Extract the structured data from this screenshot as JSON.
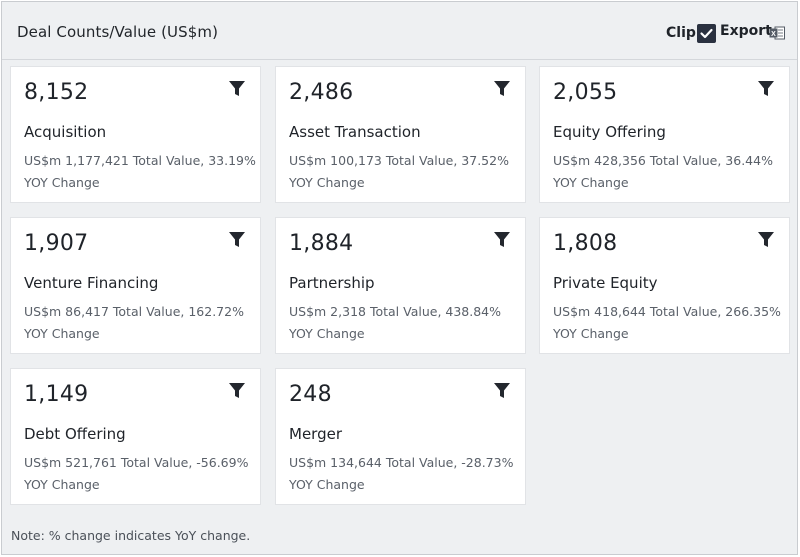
{
  "header": {
    "title": "Deal Counts/Value (US$m)",
    "clip_label": "Clip",
    "export_label": "Export"
  },
  "cards": [
    {
      "count": "8,152",
      "name": "Acquisition",
      "stats": "US$m 1,177,421 Total Value, 33.19% YOY Change"
    },
    {
      "count": "2,486",
      "name": "Asset Transaction",
      "stats": "US$m 100,173 Total Value, 37.52% YOY Change"
    },
    {
      "count": "2,055",
      "name": "Equity Offering",
      "stats": "US$m 428,356 Total Value, 36.44% YOY Change"
    },
    {
      "count": "1,907",
      "name": "Venture Financing",
      "stats": "US$m 86,417 Total Value, 162.72% YOY Change"
    },
    {
      "count": "1,884",
      "name": "Partnership",
      "stats": "US$m 2,318 Total Value, 438.84% YOY Change"
    },
    {
      "count": "1,808",
      "name": "Private Equity",
      "stats": "US$m 418,644 Total Value, 266.35% YOY Change"
    },
    {
      "count": "1,149",
      "name": "Debt Offering",
      "stats": "US$m 521,761 Total Value, -56.69% YOY Change"
    },
    {
      "count": "248",
      "name": "Merger",
      "stats": "US$m 134,644 Total Value, -28.73% YOY Change"
    }
  ],
  "note": "Note: % change indicates YoY change.",
  "colors": {
    "accent_dark": "#2a3140",
    "excel_green": "#1d6f42"
  },
  "icons": {
    "clip": "checkmark-icon",
    "export": "excel-icon",
    "card": "filter-icon"
  }
}
